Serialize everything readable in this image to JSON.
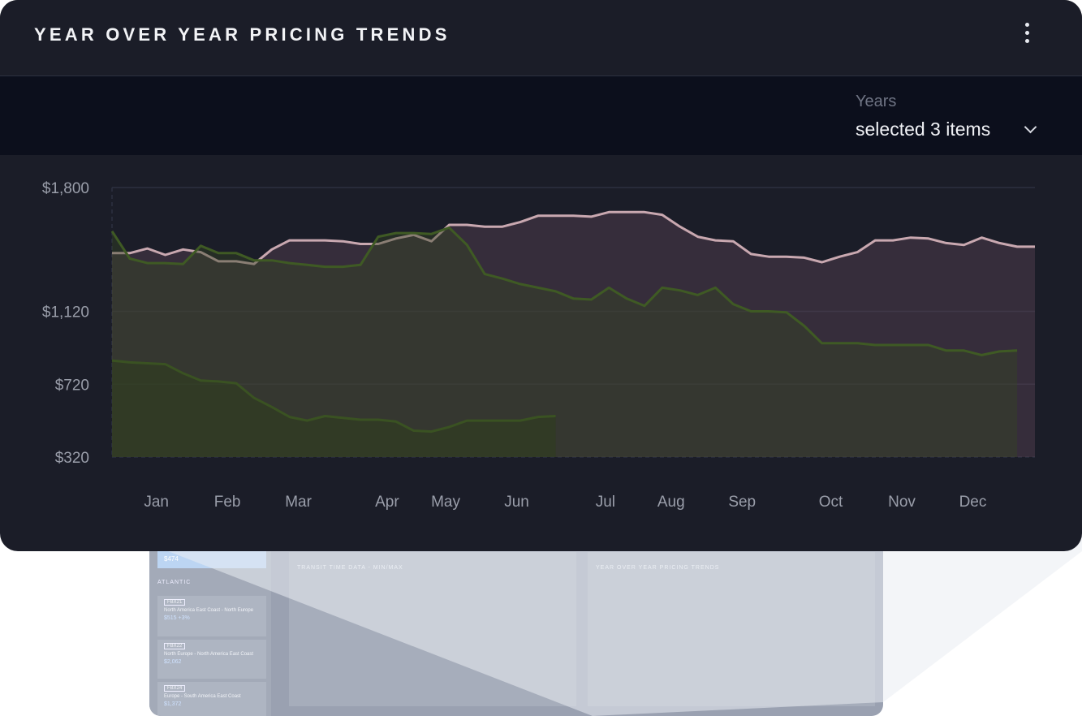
{
  "header": {
    "title": "YEAR OVER YEAR PRICING TRENDS",
    "menu_icon": "kebab-menu-icon"
  },
  "filter": {
    "label": "Years",
    "value": "selected 3 items",
    "icon": "chevron-down-icon"
  },
  "colors": {
    "card_bg": "#1b1d28",
    "filterbar_bg": "#0c0f1c",
    "series_pink": "#c9a8b0",
    "series_green": "#3f5a24",
    "series_dark_green": "#3a5222",
    "grid": "#2d3040",
    "tick_text": "#9a9eaa"
  },
  "background": {
    "sidebar_value": "$474",
    "group": "ATLANTIC",
    "cards": [
      {
        "tag": "FBX21",
        "route": "North America East Coast - North Europe",
        "value": "$515  +3%"
      },
      {
        "tag": "FBX22",
        "route": "North Europe - North America East Coast",
        "value": "$2,062"
      },
      {
        "tag": "FBX24",
        "route": "Europe - South America East Coast",
        "value": "$1,372"
      }
    ],
    "panels": [
      {
        "title": "TRANSIT TIME DATA - MIN/MAX"
      },
      {
        "title": "YEAR OVER YEAR PRICING TRENDS"
      }
    ]
  },
  "chart_data": {
    "type": "area",
    "title": "YEAR OVER YEAR PRICING TRENDS",
    "xlabel": "",
    "ylabel": "",
    "ylim": [
      320,
      1800
    ],
    "y_ticks": [
      "$1,800",
      "$1,120",
      "$720",
      "$320"
    ],
    "y_tick_values": [
      1800,
      1120,
      720,
      320
    ],
    "categories": [
      "Jan",
      "Feb",
      "Mar",
      "Apr",
      "May",
      "Jun",
      "Jul",
      "Aug",
      "Sep",
      "Oct",
      "Nov",
      "Dec"
    ],
    "x_range": [
      1,
      53
    ],
    "grid": true,
    "legend": "none",
    "series": [
      {
        "color": "#c9a8b0",
        "x": [
          1,
          2,
          3,
          4,
          5,
          6,
          7,
          8,
          9,
          10,
          11,
          12,
          13,
          14,
          15,
          16,
          17,
          18,
          19,
          20,
          21,
          22,
          23,
          24,
          25,
          26,
          27,
          28,
          29,
          30,
          31,
          32,
          33,
          34,
          35,
          36,
          37,
          38,
          39,
          40,
          41,
          42,
          43,
          44,
          45,
          46,
          47,
          48,
          49,
          50,
          51,
          52,
          53
        ],
        "values": [
          1440,
          1440,
          1465,
          1430,
          1460,
          1445,
          1395,
          1395,
          1380,
          1460,
          1510,
          1510,
          1510,
          1505,
          1490,
          1490,
          1520,
          1540,
          1505,
          1595,
          1595,
          1585,
          1585,
          1610,
          1645,
          1645,
          1645,
          1640,
          1665,
          1665,
          1665,
          1650,
          1585,
          1530,
          1510,
          1505,
          1435,
          1420,
          1420,
          1415,
          1390,
          1420,
          1445,
          1510,
          1510,
          1525,
          1520,
          1495,
          1485,
          1525,
          1495,
          1475,
          1475
        ]
      },
      {
        "color": "#3f5a24",
        "x": [
          1,
          2,
          3,
          4,
          5,
          6,
          7,
          8,
          9,
          10,
          11,
          12,
          13,
          14,
          15,
          16,
          17,
          18,
          19,
          20,
          21,
          22,
          23,
          24,
          25,
          26,
          27,
          28,
          29,
          30,
          31,
          32,
          33,
          34,
          35,
          36,
          37,
          38,
          39,
          40,
          41,
          42,
          43,
          44,
          45,
          46,
          47,
          48,
          49,
          50,
          51,
          52
        ],
        "values": [
          1560,
          1410,
          1385,
          1385,
          1380,
          1480,
          1440,
          1440,
          1400,
          1400,
          1385,
          1375,
          1365,
          1365,
          1375,
          1530,
          1550,
          1550,
          1545,
          1580,
          1485,
          1325,
          1300,
          1270,
          1250,
          1230,
          1190,
          1185,
          1250,
          1190,
          1150,
          1250,
          1235,
          1210,
          1250,
          1160,
          1120,
          1120,
          1115,
          1040,
          945,
          945,
          945,
          935,
          935,
          935,
          935,
          905,
          905,
          880,
          900,
          905
        ]
      },
      {
        "color": "#3a5222",
        "x": [
          1,
          2,
          3,
          4,
          5,
          6,
          7,
          8,
          9,
          10,
          11,
          12,
          13,
          14,
          15,
          16,
          17,
          18,
          19,
          20,
          21,
          22,
          23,
          24,
          25,
          26
        ],
        "values": [
          850,
          840,
          835,
          830,
          780,
          740,
          735,
          725,
          645,
          595,
          540,
          520,
          545,
          535,
          525,
          525,
          515,
          465,
          460,
          485,
          520,
          520,
          520,
          520,
          540,
          545
        ]
      }
    ]
  }
}
